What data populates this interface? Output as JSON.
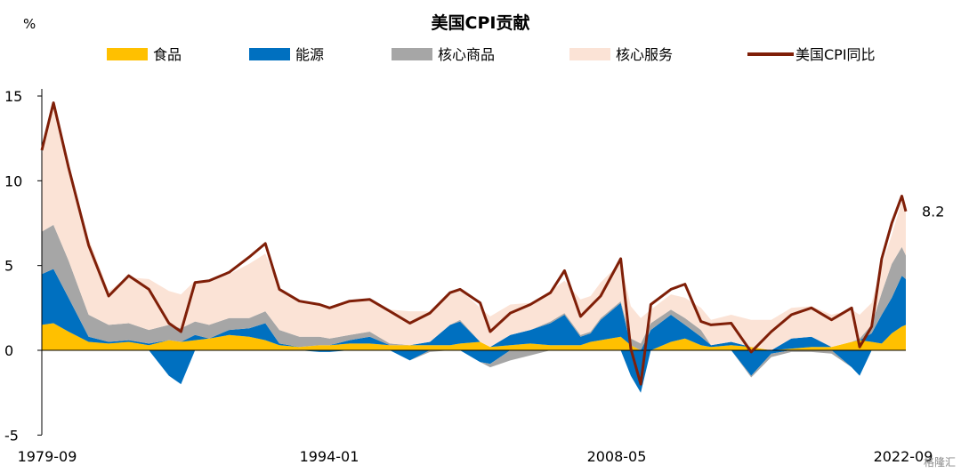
{
  "chart_data": {
    "type": "area",
    "title": "美国CPI贡献",
    "unit": "%",
    "ylim": [
      -5,
      15
    ],
    "yticks": [
      "15",
      "10",
      "5",
      "0",
      "-5"
    ],
    "xticks": [
      "1979-09",
      "1994-01",
      "2008-05",
      "2022-09"
    ],
    "legend_position": "top",
    "end_label": "8.2",
    "watermark": "格隆汇",
    "x": [
      1979.67,
      1980.25,
      1981.0,
      1982.0,
      1983.0,
      1984.0,
      1985.0,
      1986.0,
      1986.6,
      1987.3,
      1988.0,
      1989.0,
      1990.0,
      1990.8,
      1991.5,
      1992.5,
      1993.5,
      1994.0,
      1995.0,
      1996.0,
      1997.0,
      1998.0,
      1999.0,
      2000.0,
      2000.5,
      2001.5,
      2002.0,
      2003.0,
      2004.0,
      2005.0,
      2005.7,
      2006.5,
      2007.0,
      2007.5,
      2008.5,
      2009.0,
      2009.5,
      2010.0,
      2011.0,
      2011.7,
      2012.5,
      2013.0,
      2014.0,
      2015.0,
      2016.0,
      2017.0,
      2018.0,
      2019.0,
      2020.0,
      2020.4,
      2021.0,
      2021.5,
      2022.0,
      2022.5,
      2022.7
    ],
    "series": [
      {
        "name": "食品",
        "color": "#FFC000",
        "values": [
          1.5,
          1.6,
          1.1,
          0.5,
          0.4,
          0.5,
          0.3,
          0.6,
          0.5,
          0.6,
          0.7,
          0.9,
          0.8,
          0.6,
          0.3,
          0.2,
          0.3,
          0.3,
          0.4,
          0.4,
          0.3,
          0.3,
          0.3,
          0.3,
          0.4,
          0.5,
          0.2,
          0.3,
          0.4,
          0.3,
          0.3,
          0.3,
          0.5,
          0.6,
          0.8,
          0.3,
          0.0,
          0.0,
          0.5,
          0.7,
          0.3,
          0.2,
          0.3,
          0.2,
          0.0,
          0.1,
          0.2,
          0.2,
          0.5,
          0.6,
          0.5,
          0.4,
          1.0,
          1.4,
          1.5
        ]
      },
      {
        "name": "能源",
        "color": "#0070C0",
        "values": [
          3.0,
          3.2,
          2.0,
          0.3,
          0.1,
          0.1,
          0.1,
          -1.5,
          -2.0,
          0.3,
          0.0,
          0.3,
          0.5,
          1.0,
          0.1,
          0.0,
          -0.1,
          -0.1,
          0.2,
          0.4,
          0.0,
          -0.6,
          0.2,
          1.2,
          1.3,
          -0.7,
          -0.8,
          0.6,
          0.8,
          1.3,
          1.8,
          0.5,
          0.5,
          1.2,
          2.0,
          -1.5,
          -2.5,
          1.2,
          1.6,
          0.8,
          0.5,
          0.1,
          0.2,
          -1.5,
          -0.2,
          0.6,
          0.6,
          0.0,
          -1.0,
          -1.5,
          0.5,
          1.7,
          2.1,
          3.0,
          2.7
        ]
      },
      {
        "name": "核心商品",
        "color": "#A6A6A6",
        "values": [
          2.5,
          2.6,
          2.2,
          1.3,
          1.0,
          1.0,
          0.8,
          0.9,
          0.8,
          0.8,
          0.8,
          0.7,
          0.6,
          0.7,
          0.8,
          0.6,
          0.5,
          0.4,
          0.3,
          0.3,
          0.1,
          0.0,
          -0.1,
          0.0,
          0.1,
          0.0,
          -0.2,
          -0.6,
          -0.3,
          0.1,
          0.1,
          0.1,
          0.1,
          0.1,
          0.1,
          0.4,
          0.4,
          0.4,
          0.3,
          0.4,
          0.4,
          0.0,
          0.0,
          -0.1,
          -0.2,
          -0.1,
          -0.1,
          -0.2,
          0.0,
          0.1,
          0.5,
          1.3,
          2.0,
          1.7,
          1.4
        ]
      },
      {
        "name": "核心服务",
        "color": "#FBE3D6",
        "values": [
          4.5,
          7.0,
          5.5,
          4.5,
          2.0,
          2.7,
          3.0,
          2.0,
          2.0,
          2.4,
          2.5,
          2.6,
          3.2,
          3.4,
          2.4,
          2.0,
          2.0,
          1.8,
          2.0,
          1.9,
          2.0,
          2.0,
          1.8,
          1.8,
          1.8,
          2.0,
          1.8,
          1.8,
          1.6,
          1.8,
          1.9,
          2.1,
          2.1,
          2.1,
          2.3,
          1.9,
          1.5,
          0.8,
          0.9,
          1.2,
          1.3,
          1.5,
          1.6,
          1.6,
          1.8,
          1.8,
          1.8,
          1.9,
          1.9,
          1.4,
          1.3,
          1.6,
          1.7,
          2.7,
          3.0
        ]
      },
      {
        "name": "美国CPI同比",
        "color": "#7F1F08",
        "values": [
          11.8,
          14.6,
          10.8,
          6.2,
          3.2,
          4.4,
          3.6,
          1.6,
          1.1,
          4.0,
          4.1,
          4.6,
          5.5,
          6.3,
          3.6,
          2.9,
          2.7,
          2.5,
          2.9,
          3.0,
          2.3,
          1.6,
          2.2,
          3.4,
          3.6,
          2.8,
          1.1,
          2.2,
          2.7,
          3.4,
          4.7,
          2.0,
          2.6,
          3.2,
          5.4,
          0.1,
          -2.0,
          2.7,
          3.6,
          3.9,
          1.7,
          1.5,
          1.6,
          -0.1,
          1.1,
          2.1,
          2.5,
          1.8,
          2.5,
          0.2,
          1.4,
          5.4,
          7.5,
          9.1,
          8.2
        ]
      }
    ]
  }
}
